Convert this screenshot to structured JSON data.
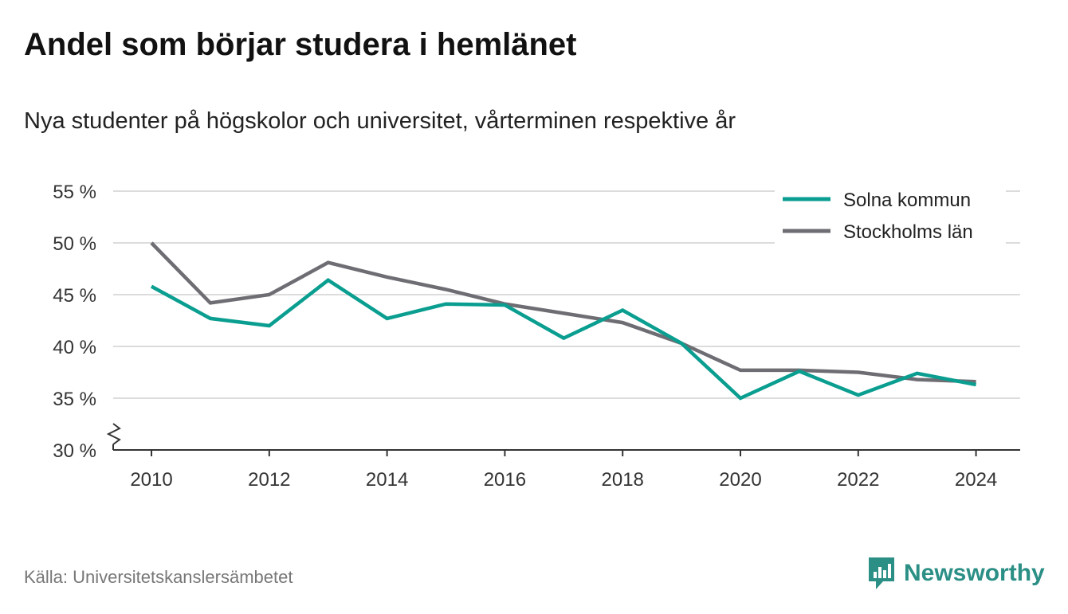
{
  "header": {
    "title": "Andel som börjar studera i hemlänet",
    "subtitle": "Nya studenter på högskolor och universitet, vårterminen respektive år"
  },
  "footer": {
    "source": "Källa: Universitetskanslersämbetet",
    "brand_name": "Newsworthy",
    "brand_icon": "newsworthy-logo-icon"
  },
  "colors": {
    "solna": "#0a9e90",
    "stockholm": "#6e6d73",
    "grid": "#dcdcdc",
    "axis": "#333333",
    "brand": "#2b8f86"
  },
  "chart_data": {
    "type": "line",
    "x": [
      2010,
      2011,
      2012,
      2013,
      2014,
      2015,
      2016,
      2017,
      2018,
      2019,
      2020,
      2021,
      2022,
      2023,
      2024
    ],
    "series": [
      {
        "name": "Solna kommun",
        "color": "#0a9e90",
        "values": [
          45.8,
          42.7,
          42.0,
          46.4,
          42.7,
          44.1,
          44.0,
          40.8,
          43.5,
          40.3,
          35.0,
          37.6,
          35.3,
          37.4,
          36.3
        ]
      },
      {
        "name": "Stockholms län",
        "color": "#6e6d73",
        "values": [
          50.0,
          44.2,
          45.0,
          48.1,
          46.7,
          45.5,
          44.1,
          43.2,
          42.3,
          40.3,
          37.7,
          37.7,
          37.5,
          36.8,
          36.6
        ]
      }
    ],
    "xticks": [
      2010,
      2012,
      2014,
      2016,
      2018,
      2020,
      2022,
      2024
    ],
    "xtick_labels": [
      "2010",
      "2012",
      "2014",
      "2016",
      "2018",
      "2020",
      "2022",
      "2024"
    ],
    "yticks": [
      30,
      35,
      40,
      45,
      50,
      55
    ],
    "ytick_labels": [
      "30 %",
      "35 %",
      "40 %",
      "45 %",
      "50 %",
      "55 %"
    ],
    "ylim": [
      30,
      55
    ],
    "xlim": [
      2009.35,
      2024.75
    ],
    "y_axis_break": true,
    "grid": true,
    "legend_position": "top-right"
  }
}
